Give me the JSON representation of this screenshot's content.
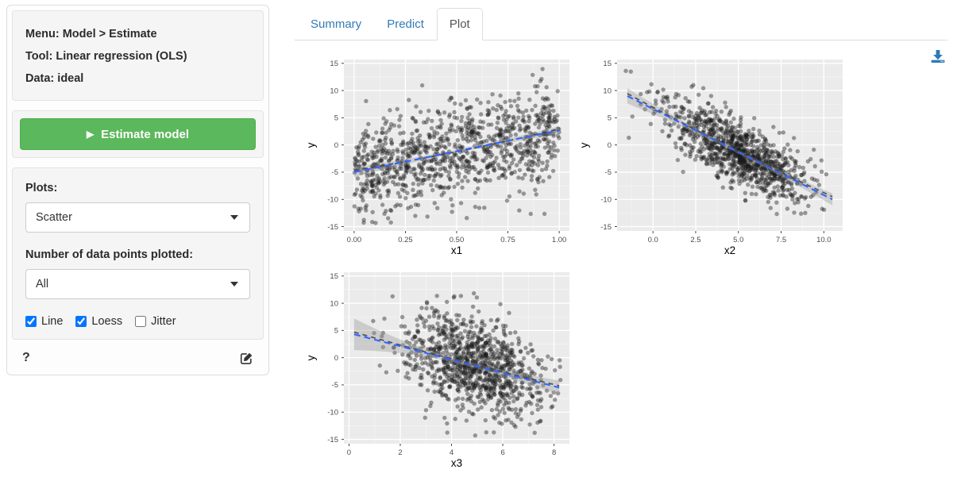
{
  "sidebar": {
    "summary": {
      "menu_label": "Menu: Model > Estimate",
      "tool_label": "Tool: Linear regression (OLS)",
      "data_label": "Data: ideal"
    },
    "estimate_button": {
      "label": "Estimate model",
      "icon": "play-icon"
    },
    "plots_section": {
      "plots_label": "Plots:",
      "plot_type_value": "Scatter",
      "npoints_label": "Number of data points plotted:",
      "npoints_value": "All",
      "checkboxes": [
        {
          "label": "Line",
          "checked": true
        },
        {
          "label": "Loess",
          "checked": true
        },
        {
          "label": "Jitter",
          "checked": false
        }
      ]
    },
    "help_label": "?",
    "edit_icon": "edit-pencil-icon"
  },
  "main": {
    "tabs": [
      {
        "label": "Summary",
        "active": false
      },
      {
        "label": "Predict",
        "active": false
      },
      {
        "label": "Plot",
        "active": true
      }
    ],
    "download_icon": "download-icon"
  },
  "colors": {
    "button_green": "#5cb85c",
    "button_green_border": "#4cae4c",
    "tab_link_blue": "#337ab7",
    "download_blue": "#2d7ab9",
    "ols_line_blue": "#3366FF",
    "loess_line_gray": "#3d3d3d",
    "se_band_gray": "#999999",
    "panel_gray": "#ebebeb",
    "point_color": "#1a1a1a"
  },
  "chart_data": [
    {
      "type": "scatter",
      "title": "",
      "xlabel": "x1",
      "ylabel": "y",
      "xlim": [
        0,
        1
      ],
      "ylim": [
        -15,
        15
      ],
      "x_ticks": [
        0,
        0.25,
        0.5,
        0.75,
        1
      ],
      "x_tick_labels": [
        "0.00",
        "0.25",
        "0.50",
        "0.75",
        "1.00"
      ],
      "y_ticks": [
        -15,
        -10,
        -5,
        0,
        5,
        10,
        15
      ],
      "y_tick_labels": [
        "-15",
        "-10",
        "-5",
        "0",
        "5",
        "10",
        "15"
      ],
      "grid": true,
      "n_points": 1000,
      "x_dist": {
        "type": "uniform",
        "min": 0,
        "max": 1
      },
      "y_model": {
        "intercept": -5.0,
        "slope": 7.7,
        "noise_sd": 4.4
      },
      "ols_line": {
        "x": [
          0,
          1
        ],
        "y": [
          -5.0,
          2.7
        ]
      },
      "loess_line": {
        "offsets": [
          0.35,
          -0.1,
          0.25
        ]
      },
      "se_band": {
        "left": 0.9,
        "mid": 0.3,
        "right": 0.7
      },
      "seed": 11
    },
    {
      "type": "scatter",
      "title": "",
      "xlabel": "x2",
      "ylabel": "y",
      "xlim": [
        -1.5,
        10.5
      ],
      "ylim": [
        -15,
        15
      ],
      "x_ticks": [
        0,
        2.5,
        5,
        7.5,
        10
      ],
      "x_tick_labels": [
        "0.0",
        "2.5",
        "5.0",
        "7.5",
        "10.0"
      ],
      "y_ticks": [
        -15,
        -10,
        -5,
        0,
        5,
        10,
        15
      ],
      "y_tick_labels": [
        "-15",
        "-10",
        "-5",
        "0",
        "5",
        "10",
        "15"
      ],
      "grid": true,
      "n_points": 1000,
      "x_dist": {
        "type": "normal",
        "mean": 4.9,
        "sd": 2.1,
        "min": -1.6,
        "max": 10.6
      },
      "y_model": {
        "intercept": 6.6,
        "slope": -1.58,
        "noise_sd": 2.9
      },
      "ols_line": {
        "x": [
          -1.5,
          10.5
        ],
        "y": [
          9.0,
          -10.0
        ]
      },
      "loess_line": {
        "offsets": [
          0.45,
          0.1,
          0.5
        ]
      },
      "se_band": {
        "left": 1.4,
        "mid": 0.3,
        "right": 1.1
      },
      "seed": 22
    },
    {
      "type": "scatter",
      "title": "",
      "xlabel": "x3",
      "ylabel": "y",
      "xlim": [
        0.2,
        8.2
      ],
      "ylim": [
        -15,
        15
      ],
      "x_ticks": [
        0,
        2,
        4,
        6,
        8
      ],
      "x_tick_labels": [
        "0",
        "2",
        "4",
        "6",
        "8"
      ],
      "y_ticks": [
        -15,
        -10,
        -5,
        0,
        5,
        10,
        15
      ],
      "y_tick_labels": [
        "-15",
        "-10",
        "-5",
        "0",
        "5",
        "10",
        "15"
      ],
      "grid": true,
      "n_points": 1000,
      "x_dist": {
        "type": "normal",
        "mean": 4.8,
        "sd": 1.35,
        "min": 0.05,
        "max": 8.25
      },
      "y_model": {
        "intercept": 4.55,
        "slope": -1.225,
        "noise_sd": 4.3
      },
      "ols_line": {
        "x": [
          0.2,
          8.2
        ],
        "y": [
          4.3,
          -5.5
        ]
      },
      "loess_line": {
        "offsets": [
          0.4,
          0.15,
          0.35
        ]
      },
      "se_band": {
        "left": 2.9,
        "mid": 0.4,
        "right": 1.3
      },
      "seed": 33
    }
  ]
}
